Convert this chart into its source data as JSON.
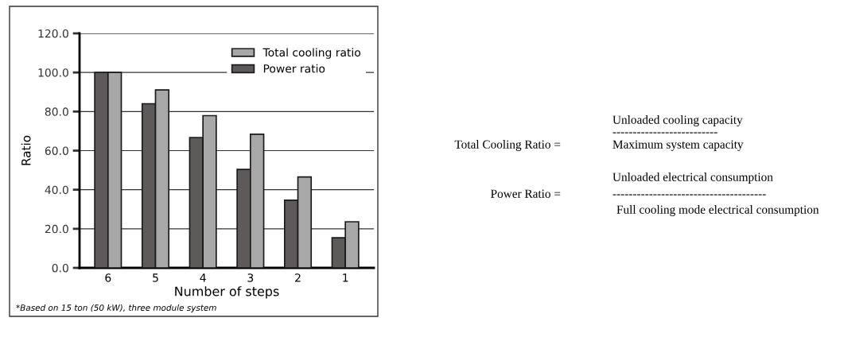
{
  "chart_data": {
    "type": "bar",
    "xlabel": "Number of steps",
    "ylabel": "Ratio",
    "categories": [
      "6",
      "5",
      "4",
      "3",
      "2",
      "1"
    ],
    "series": [
      {
        "name": "Power ratio",
        "color": "#5f5a5a",
        "values": [
          100,
          84.0,
          66.7,
          50.4,
          34.6,
          15.4
        ]
      },
      {
        "name": "Total cooling ratio",
        "color": "#a8a8a8",
        "values": [
          100,
          91.1,
          77.9,
          68.4,
          46.5,
          23.6
        ]
      }
    ],
    "ylim": [
      0,
      120
    ],
    "yticks": [
      {
        "value": 0,
        "label": "0.0"
      },
      {
        "value": 20,
        "label": "20.0"
      },
      {
        "value": 40,
        "label": "40.0"
      },
      {
        "value": 60,
        "label": "60.0"
      },
      {
        "value": 80,
        "label": "80.0"
      },
      {
        "value": 100,
        "label": "100.0"
      },
      {
        "value": 120,
        "label": "120.0"
      }
    ],
    "grid": "y",
    "legend": "top right",
    "annotations": [
      "*Based on 15 ton (50 kW), three module system",
      "Total Cooling Ratio =",
      "Unloaded cooling capacity",
      "--------------------------",
      "Maximum system capacity",
      "Power Ratio =",
      "Unloaded electrical consumption",
      "--------------------------------------",
      "Full cooling mode electrical consumption"
    ]
  }
}
